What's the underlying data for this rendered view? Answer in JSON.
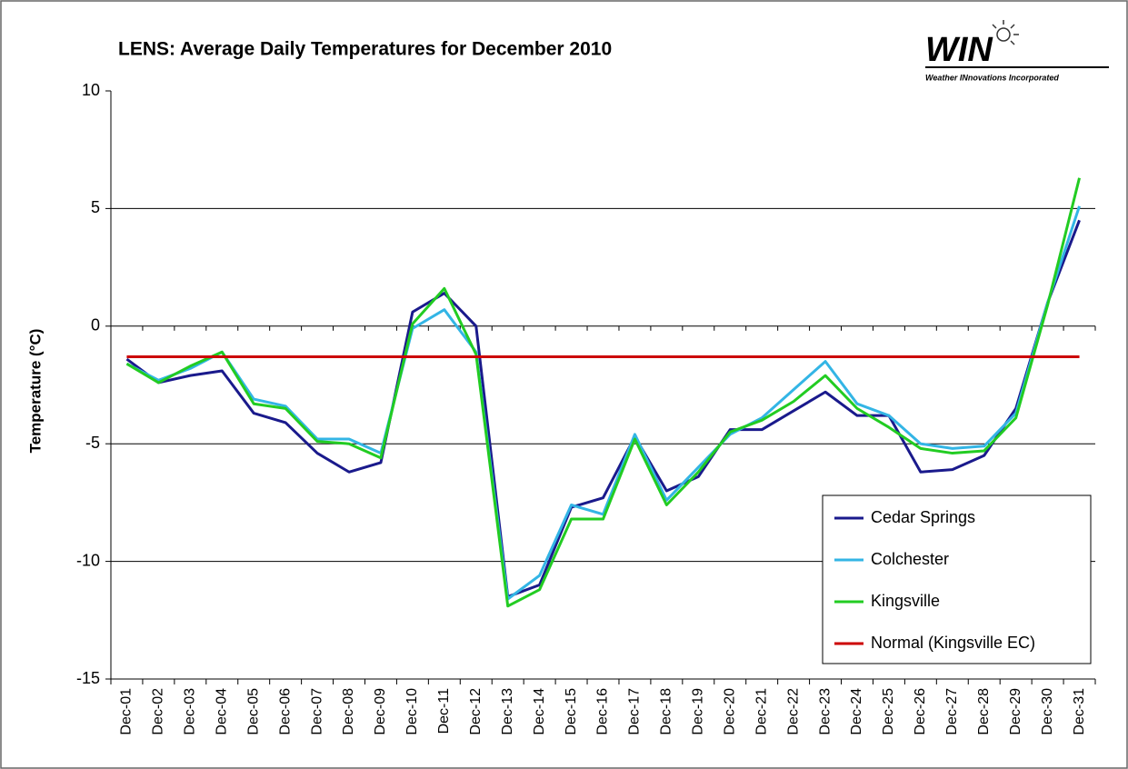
{
  "chart_data": {
    "type": "line",
    "title": "LENS: Average Daily Temperatures for December 2010",
    "logo": {
      "name": "WIN",
      "subtitle": "Weather INnovations Incorporated"
    },
    "y_label": "Temperature (°C)",
    "categories": [
      "Dec-01",
      "Dec-02",
      "Dec-03",
      "Dec-04",
      "Dec-05",
      "Dec-06",
      "Dec-07",
      "Dec-08",
      "Dec-09",
      "Dec-10",
      "Dec-11",
      "Dec-12",
      "Dec-13",
      "Dec-14",
      "Dec-15",
      "Dec-16",
      "Dec-17",
      "Dec-18",
      "Dec-19",
      "Dec-20",
      "Dec-21",
      "Dec-22",
      "Dec-23",
      "Dec-24",
      "Dec-25",
      "Dec-26",
      "Dec-27",
      "Dec-28",
      "Dec-29",
      "Dec-30",
      "Dec-31"
    ],
    "series": [
      {
        "name": "Cedar Springs",
        "color": "#1a1a8c",
        "values": [
          -1.4,
          -2.4,
          -2.1,
          -1.9,
          -3.7,
          -4.1,
          -5.4,
          -6.2,
          -5.8,
          0.6,
          1.4,
          0.0,
          -11.5,
          -11.0,
          -7.7,
          -7.3,
          -4.7,
          -7.0,
          -6.4,
          -4.4,
          -4.4,
          -3.6,
          -2.8,
          -3.8,
          -3.8,
          -6.2,
          -6.1,
          -5.5,
          -3.5,
          1.0,
          4.5
        ]
      },
      {
        "name": "Colchester",
        "color": "#33b5e5",
        "values": [
          -1.6,
          -2.3,
          -1.8,
          -1.1,
          -3.1,
          -3.4,
          -4.8,
          -4.8,
          -5.4,
          -0.1,
          0.7,
          -1.1,
          -11.6,
          -10.6,
          -7.6,
          -8.0,
          -4.6,
          -7.4,
          -6.0,
          -4.6,
          -3.9,
          -2.7,
          -1.5,
          -3.3,
          -3.8,
          -5.0,
          -5.2,
          -5.1,
          -3.7,
          1.0,
          5.1
        ]
      },
      {
        "name": "Kingsville",
        "color": "#22cc22",
        "values": [
          -1.6,
          -2.4,
          -1.7,
          -1.1,
          -3.3,
          -3.5,
          -4.9,
          -5.0,
          -5.6,
          0.1,
          1.6,
          -1.2,
          -11.9,
          -11.2,
          -8.2,
          -8.2,
          -4.8,
          -7.6,
          -6.2,
          -4.5,
          -4.0,
          -3.2,
          -2.1,
          -3.5,
          -4.3,
          -5.2,
          -5.4,
          -5.3,
          -3.9,
          0.9,
          6.3
        ]
      },
      {
        "name": "Normal (Kingsville EC)",
        "color": "#cc0000",
        "values": [
          -1.3,
          -1.3,
          -1.3,
          -1.3,
          -1.3,
          -1.3,
          -1.3,
          -1.3,
          -1.3,
          -1.3,
          -1.3,
          -1.3,
          -1.3,
          -1.3,
          -1.3,
          -1.3,
          -1.3,
          -1.3,
          -1.3,
          -1.3,
          -1.3,
          -1.3,
          -1.3,
          -1.3,
          -1.3,
          -1.3,
          -1.3,
          -1.3,
          -1.3,
          -1.3,
          -1.3
        ]
      }
    ],
    "ylim": [
      -15,
      10
    ],
    "yticks": [
      -15,
      -10,
      -5,
      0,
      5,
      10
    ],
    "grid": true,
    "legend": "lower right"
  }
}
